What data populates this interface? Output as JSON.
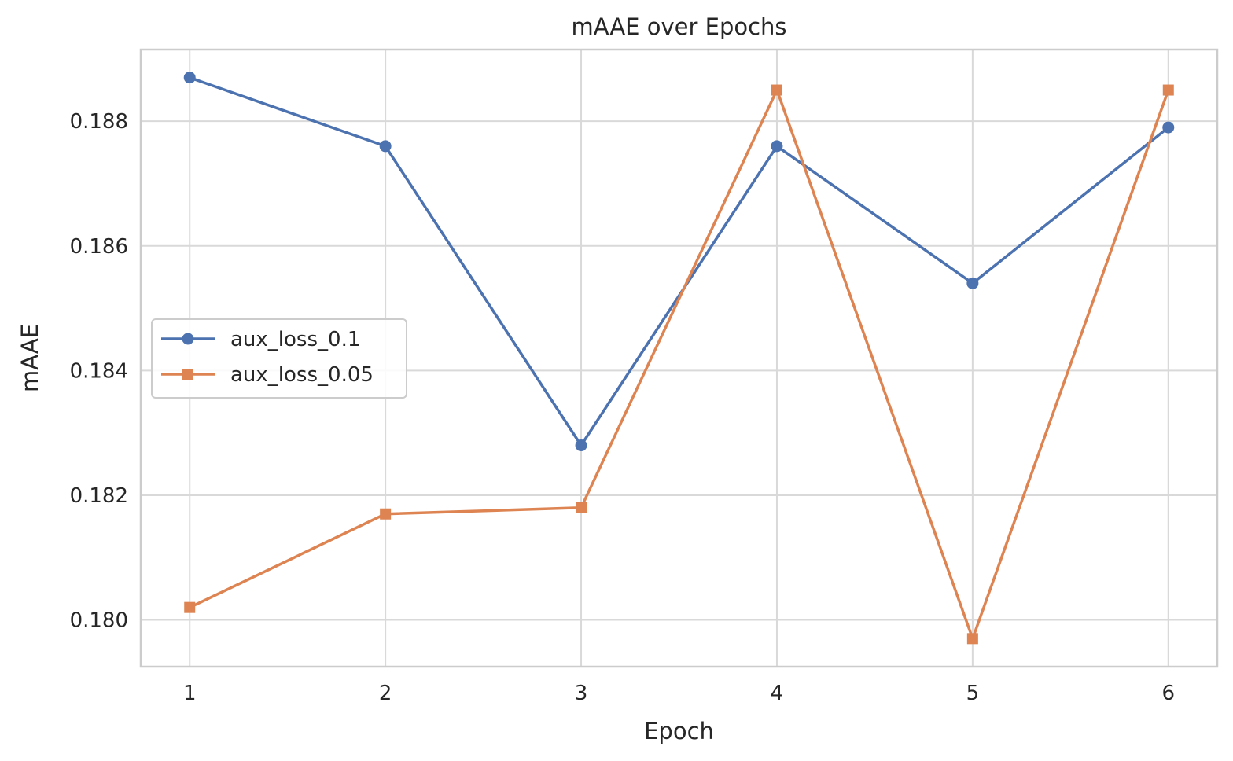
{
  "chart_data": {
    "type": "line",
    "title": "mAAE over Epochs",
    "xlabel": "Epoch",
    "ylabel": "mAAE",
    "x": [
      1,
      2,
      3,
      4,
      5,
      6
    ],
    "x_ticks": [
      "1",
      "2",
      "3",
      "4",
      "5",
      "6"
    ],
    "y_ticks": [
      "0.180",
      "0.182",
      "0.184",
      "0.186",
      "0.188"
    ],
    "xlim": [
      0.75,
      6.25
    ],
    "ylim": [
      0.17925,
      0.18915
    ],
    "grid": true,
    "legend_position": "center-left",
    "series": [
      {
        "name": "aux_loss_0.1",
        "marker": "circle",
        "color": "#4c72b0",
        "values": [
          0.1887,
          0.1876,
          0.1828,
          0.1876,
          0.1854,
          0.1879
        ]
      },
      {
        "name": "aux_loss_0.05",
        "marker": "square",
        "color": "#dd8452",
        "values": [
          0.1802,
          0.1817,
          0.1818,
          0.1885,
          0.1797,
          0.1885
        ]
      }
    ]
  }
}
